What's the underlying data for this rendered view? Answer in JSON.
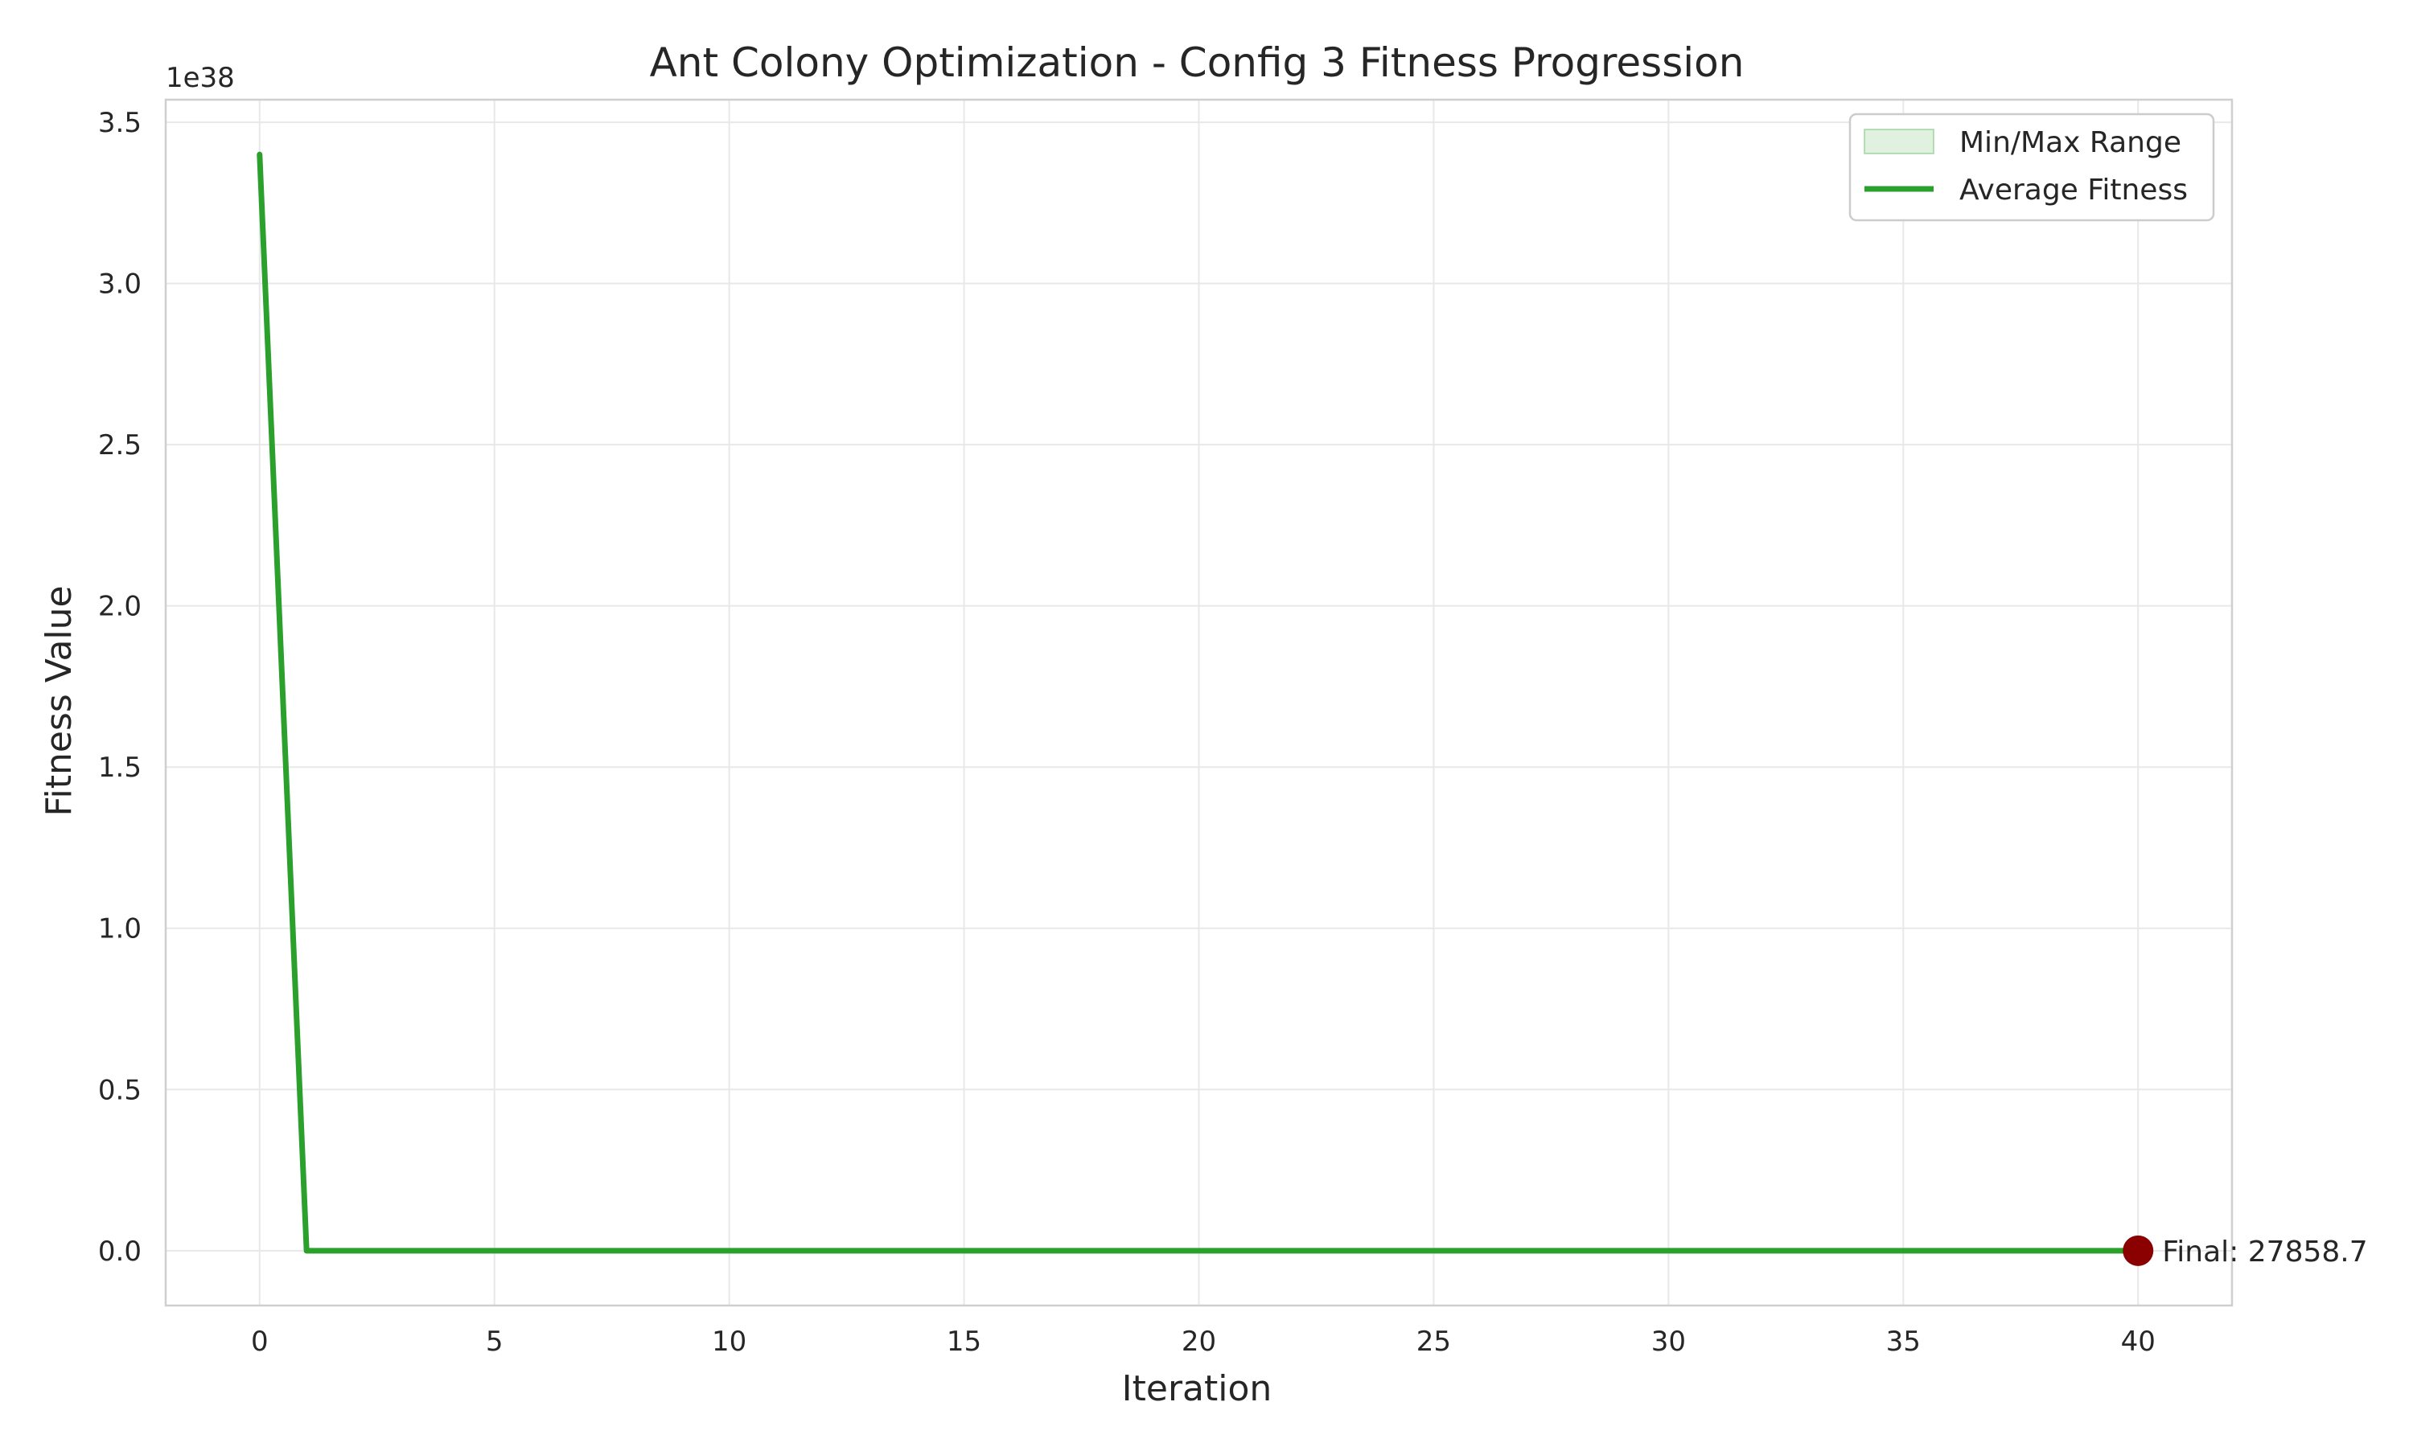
{
  "chart_data": {
    "type": "line",
    "title": "Ant Colony Optimization - Config 3 Fitness Progression",
    "xlabel": "Iteration",
    "ylabel": "Fitness Value",
    "y_offset_label": "1e38",
    "y_scale_factor": 1e+38,
    "xlim": [
      -2,
      42
    ],
    "ylim": [
      -0.17,
      3.57
    ],
    "xticks": [
      0,
      5,
      10,
      15,
      20,
      25,
      30,
      35,
      40
    ],
    "yticks": [
      0.0,
      0.5,
      1.0,
      1.5,
      2.0,
      2.5,
      3.0,
      3.5
    ],
    "ytick_labels": [
      "0.0",
      "0.5",
      "1.0",
      "1.5",
      "2.0",
      "2.5",
      "3.0",
      "3.5"
    ],
    "grid": true,
    "legend_position": "top-right",
    "legend": [
      {
        "label": "Min/Max Range",
        "kind": "band",
        "color": "#2ca02c"
      },
      {
        "label": "Average Fitness",
        "kind": "line",
        "color": "#2ca02c"
      }
    ],
    "series": [
      {
        "name": "Average Fitness",
        "color": "#2ca02c",
        "x": [
          0,
          1,
          2,
          3,
          4,
          5,
          6,
          7,
          8,
          9,
          10,
          11,
          12,
          13,
          14,
          15,
          16,
          17,
          18,
          19,
          20,
          21,
          22,
          23,
          24,
          25,
          26,
          27,
          28,
          29,
          30,
          31,
          32,
          33,
          34,
          35,
          36,
          37,
          38,
          39,
          40
        ],
        "y": [
          3.4,
          0,
          0,
          0,
          0,
          0,
          0,
          0,
          0,
          0,
          0,
          0,
          0,
          0,
          0,
          0,
          0,
          0,
          0,
          0,
          0,
          0,
          0,
          0,
          0,
          0,
          0,
          0,
          0,
          0,
          0,
          0,
          0,
          0,
          0,
          0,
          0,
          0,
          0,
          0,
          0
        ]
      }
    ],
    "final_marker": {
      "x": 40,
      "y": 0,
      "color": "#8b0000",
      "label": "Final: 27858.7"
    }
  }
}
